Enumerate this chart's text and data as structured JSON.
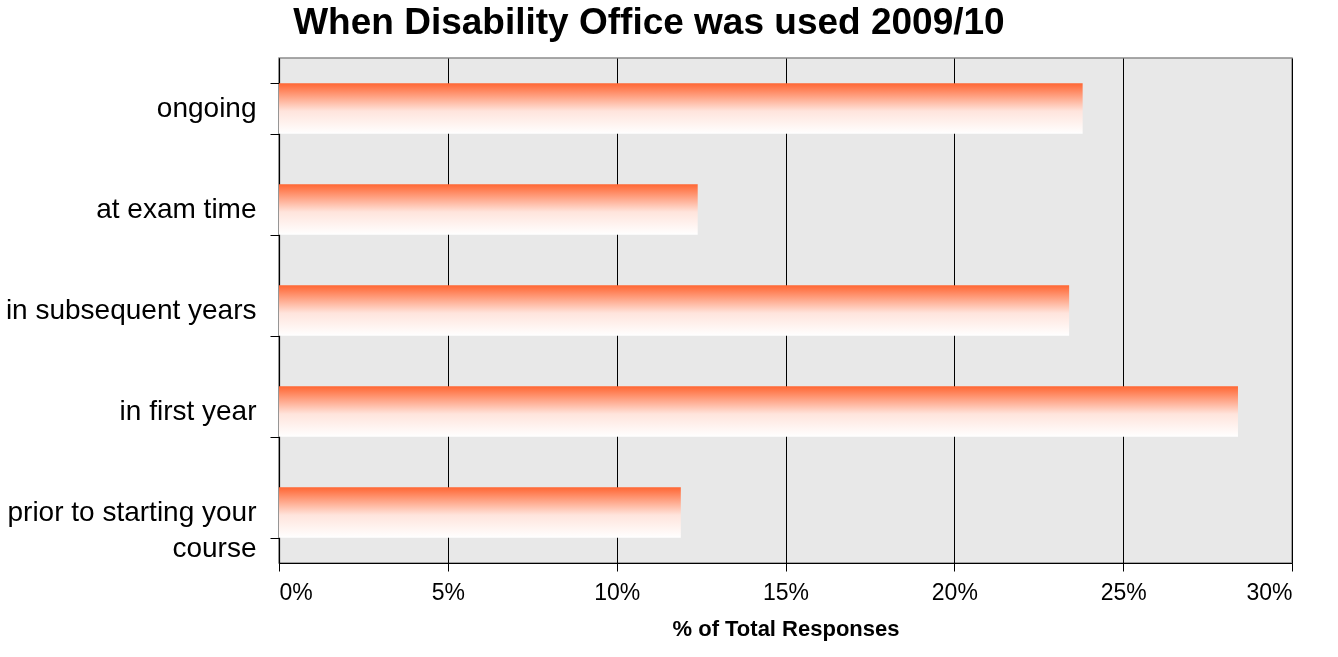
{
  "chart_data": {
    "type": "bar",
    "orientation": "horizontal",
    "title": "When Disability Office was used 2009/10",
    "xlabel": "% of Total Responses",
    "categories": [
      "ongoing",
      "at exam time",
      "in subsequent years",
      "in first year",
      "prior to starting your course"
    ],
    "values": [
      23.8,
      12.4,
      23.4,
      28.4,
      11.9
    ],
    "color": "#ff6633",
    "xlim": [
      0,
      30
    ],
    "xticks": [
      {
        "value": 0,
        "label": "0%"
      },
      {
        "value": 5,
        "label": "5%"
      },
      {
        "value": 10,
        "label": "10%"
      },
      {
        "value": 15,
        "label": "15%"
      },
      {
        "value": 20,
        "label": "20%"
      },
      {
        "value": 25,
        "label": "25%"
      },
      {
        "value": 30,
        "label": "30%"
      }
    ],
    "grid": "x"
  }
}
